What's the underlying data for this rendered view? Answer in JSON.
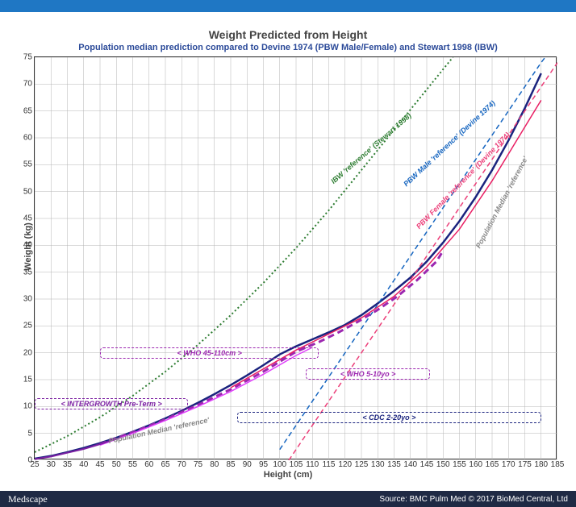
{
  "title": "Weight Predicted from Height",
  "subtitle": "Population median prediction compared to Devine 1974 (PBW Male/Female) and Stewart 1998 (IBW)",
  "xlabel": "Height (cm)",
  "ylabel": "Weight (kg)",
  "xlim": [
    25,
    185
  ],
  "ylim": [
    0,
    75
  ],
  "xtick_step": 5,
  "ytick_step": 5,
  "grid_color": "#b5b5b5",
  "border_color": "#333333",
  "footer_left": "Medscape",
  "footer_right": "Source: BMC Pulm Med © 2017 BioMed Central, Ltd",
  "footer_bg": "#1f2a44",
  "topbar_color": "#1f77c4",
  "series": {
    "pop_median": {
      "label": "Population Median 'reference'",
      "color": "#1a237e",
      "style": "solid",
      "width": 2.5,
      "data": [
        [
          25,
          0.3
        ],
        [
          30,
          0.8
        ],
        [
          35,
          1.5
        ],
        [
          40,
          2.3
        ],
        [
          45,
          3.2
        ],
        [
          50,
          4.2
        ],
        [
          55,
          5.3
        ],
        [
          60,
          6.5
        ],
        [
          65,
          7.8
        ],
        [
          70,
          9.2
        ],
        [
          75,
          10.7
        ],
        [
          80,
          12.3
        ],
        [
          85,
          14.0
        ],
        [
          90,
          15.8
        ],
        [
          95,
          17.7
        ],
        [
          100,
          19.7
        ],
        [
          105,
          21.2
        ],
        [
          110,
          22.5
        ],
        [
          115,
          23.8
        ],
        [
          120,
          25.2
        ],
        [
          125,
          27.0
        ],
        [
          130,
          29.2
        ],
        [
          135,
          31.5
        ],
        [
          140,
          34.0
        ],
        [
          145,
          37.0
        ],
        [
          150,
          40.5
        ],
        [
          155,
          44.5
        ],
        [
          160,
          49.0
        ],
        [
          165,
          54.0
        ],
        [
          170,
          59.5
        ],
        [
          175,
          65.5
        ],
        [
          180,
          72.0
        ]
      ]
    },
    "pbw_male": {
      "label": "PBW Male 'reference' (Devine 1974)",
      "color": "#1565c0",
      "style": "dash",
      "width": 1.5,
      "data": [
        [
          100,
          2
        ],
        [
          110,
          11
        ],
        [
          120,
          20
        ],
        [
          130,
          29
        ],
        [
          140,
          38
        ],
        [
          150,
          47
        ],
        [
          160,
          56
        ],
        [
          170,
          65
        ],
        [
          180,
          74
        ],
        [
          185,
          78
        ]
      ]
    },
    "pbw_female": {
      "label": "PBW Female 'reference' (Devine 1974)",
      "color": "#ec407a",
      "style": "dash",
      "width": 1.5,
      "data": [
        [
          100,
          -2.5
        ],
        [
          110,
          6.5
        ],
        [
          120,
          15.5
        ],
        [
          130,
          24.5
        ],
        [
          140,
          33.5
        ],
        [
          150,
          42.5
        ],
        [
          160,
          51.5
        ],
        [
          170,
          60.5
        ],
        [
          180,
          69.5
        ],
        [
          185,
          74
        ]
      ]
    },
    "ibw_stewart": {
      "label": "IBW 'reference' (Stewart 1998)",
      "color": "#2e7d32",
      "style": "dot",
      "width": 2,
      "data": [
        [
          25,
          1.5
        ],
        [
          35,
          4.5
        ],
        [
          45,
          8
        ],
        [
          55,
          12
        ],
        [
          65,
          16.5
        ],
        [
          75,
          21.5
        ],
        [
          85,
          27
        ],
        [
          95,
          33
        ],
        [
          105,
          39.5
        ],
        [
          115,
          46.5
        ],
        [
          125,
          54
        ],
        [
          135,
          61.5
        ],
        [
          145,
          69
        ],
        [
          153,
          75
        ]
      ]
    },
    "who_45_110_a": {
      "label": "WHO 45-110cm",
      "color": "#9c27b0",
      "style": "dash-thick",
      "width": 3,
      "data": [
        [
          45,
          3.0
        ],
        [
          55,
          5.2
        ],
        [
          65,
          7.6
        ],
        [
          75,
          10.3
        ],
        [
          85,
          13.2
        ],
        [
          95,
          16.5
        ],
        [
          105,
          20.2
        ],
        [
          110,
          21.5
        ]
      ]
    },
    "who_45_110_b": {
      "color": "#e040fb",
      "style": "solid",
      "width": 1.5,
      "data": [
        [
          45,
          2.8
        ],
        [
          55,
          5.0
        ],
        [
          65,
          7.4
        ],
        [
          75,
          10.0
        ],
        [
          85,
          12.8
        ],
        [
          95,
          16.0
        ],
        [
          105,
          19.5
        ],
        [
          110,
          21.0
        ]
      ]
    },
    "who_5_10_a": {
      "label": "WHO 5-10yo",
      "color": "#9c27b0",
      "style": "dash-thick",
      "width": 3,
      "data": [
        [
          106,
          20.5
        ],
        [
          112,
          22.0
        ],
        [
          118,
          23.8
        ],
        [
          124,
          25.8
        ],
        [
          130,
          28.0
        ],
        [
          136,
          30.5
        ],
        [
          142,
          33.5
        ],
        [
          148,
          37.0
        ],
        [
          150,
          39.0
        ]
      ]
    },
    "cdc_2_20": {
      "label": "CDC 2-20yo",
      "color": "#e91e63",
      "style": "solid",
      "width": 1.5,
      "data": [
        [
          85,
          13.5
        ],
        [
          95,
          17.0
        ],
        [
          105,
          20.5
        ],
        [
          115,
          23.5
        ],
        [
          125,
          26.5
        ],
        [
          135,
          30.5
        ],
        [
          145,
          36.0
        ],
        [
          155,
          43.0
        ],
        [
          165,
          52.0
        ],
        [
          175,
          62.0
        ],
        [
          180,
          67.0
        ]
      ]
    },
    "intergrowth": {
      "label": "INTERGROWTH Pre-Term",
      "color": "#7b1fa2",
      "style": "solid",
      "width": 2,
      "data": [
        [
          25,
          0.2
        ],
        [
          30,
          0.7
        ],
        [
          35,
          1.4
        ],
        [
          40,
          2.1
        ],
        [
          45,
          3.0
        ],
        [
          50,
          4.0
        ]
      ]
    }
  },
  "range_boxes": [
    {
      "label": "<    INTERGROWTH Pre-Term    >",
      "color": "#7b1fa2",
      "x0": 25,
      "x1": 72,
      "y": 10.5
    },
    {
      "label": "<                            WHO 45-110cm                            >",
      "color": "#9c27b0",
      "x0": 45,
      "x1": 112,
      "y": 20
    },
    {
      "label": "<   WHO 5-10yo   >",
      "color": "#9c27b0",
      "x0": 108,
      "x1": 146,
      "y": 16
    },
    {
      "label": "<                                                CDC 2-20yo                                                >",
      "color": "#1a237e",
      "x0": 87,
      "x1": 180,
      "y": 8
    }
  ]
}
